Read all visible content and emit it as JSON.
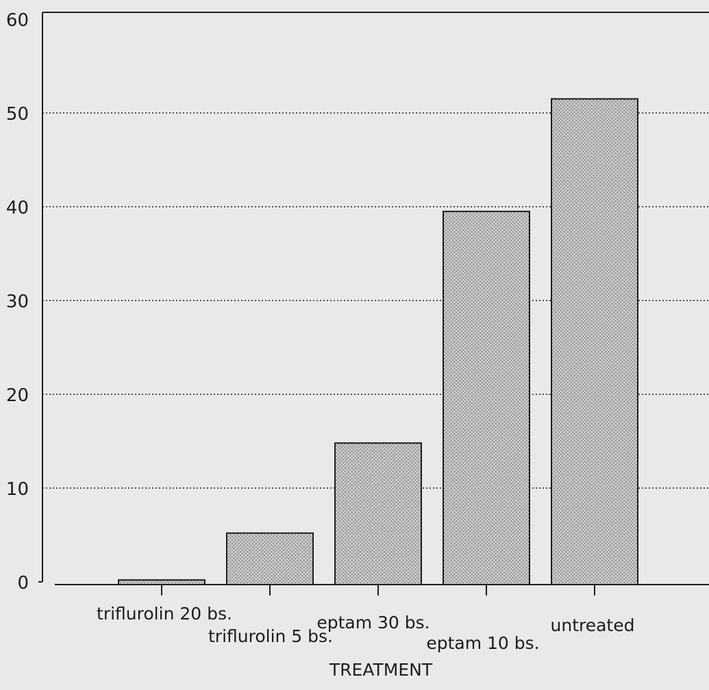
{
  "chart_data": {
    "type": "bar",
    "title": "",
    "xlabel": "TREATMENT",
    "ylabel": "",
    "categories": [
      "triflurolin 20 bs.",
      "triflurolin 5 bs.",
      "eptam 30 bs.",
      "eptam 10 bs.",
      "untreated"
    ],
    "values": [
      0.2,
      5.2,
      14.8,
      39.5,
      51.5
    ],
    "ylim": [
      0,
      60
    ],
    "yticks": [
      0,
      10,
      20,
      30,
      40,
      50,
      60
    ],
    "grid": true,
    "legend": "none",
    "colors": {
      "background": "#e9e9e7",
      "ink": "#1d1d1d",
      "bar_fill": "#c9c9c7",
      "bar_dot": "#6f6f6d"
    }
  }
}
